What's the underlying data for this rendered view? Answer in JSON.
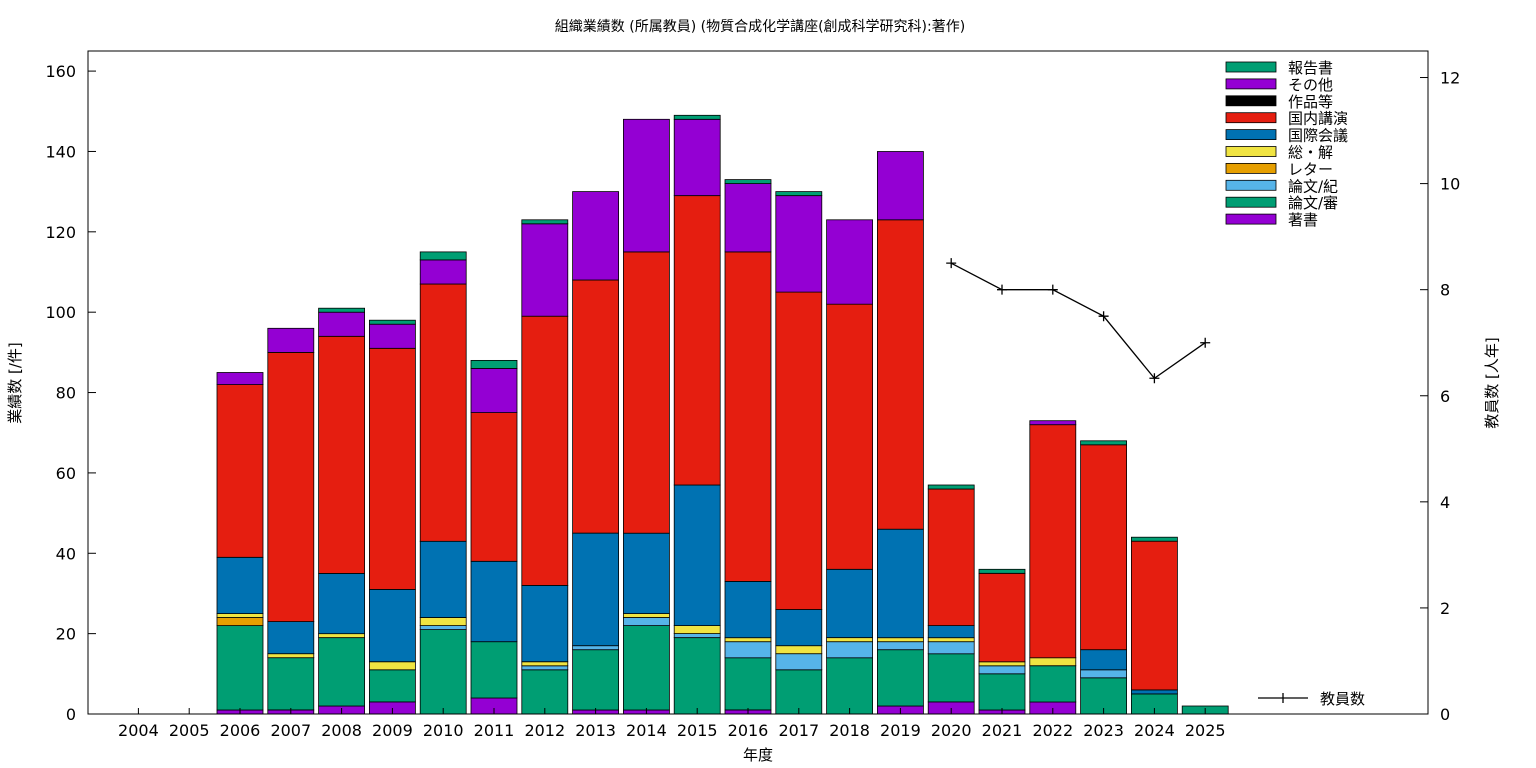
{
  "chart_data": {
    "type": "bar",
    "stacked": true,
    "title": "組織業績数 (所属教員) (物質合成化学講座(創成科学研究科):著作)",
    "xlabel": "年度",
    "ylabel": "業績数 [/件]",
    "y2label": "教員数 [人年]",
    "ylim": [
      0,
      165
    ],
    "y2lim": [
      0,
      12.5
    ],
    "yticks": [
      0,
      20,
      40,
      60,
      80,
      100,
      120,
      140,
      160
    ],
    "y2ticks": [
      0,
      2,
      4,
      6,
      8,
      10,
      12
    ],
    "categories": [
      "2004",
      "2005",
      "2006",
      "2007",
      "2008",
      "2009",
      "2010",
      "2011",
      "2012",
      "2013",
      "2014",
      "2015",
      "2016",
      "2017",
      "2018",
      "2019",
      "2020",
      "2021",
      "2022",
      "2023",
      "2024",
      "2025"
    ],
    "series": [
      {
        "name": "著書",
        "color": "#9400d3",
        "values": [
          0,
          0,
          1,
          1,
          2,
          3,
          0,
          4,
          0,
          1,
          1,
          0,
          1,
          0,
          0,
          2,
          3,
          1,
          3,
          0,
          0,
          0
        ]
      },
      {
        "name": "論文/審",
        "color": "#009e73",
        "values": [
          0,
          0,
          21,
          13,
          17,
          8,
          21,
          14,
          11,
          15,
          21,
          19,
          13,
          11,
          14,
          14,
          12,
          9,
          9,
          9,
          5,
          2
        ]
      },
      {
        "name": "論文/紀",
        "color": "#56b4e9",
        "values": [
          0,
          0,
          0,
          0,
          0,
          0,
          1,
          0,
          1,
          1,
          2,
          1,
          4,
          4,
          4,
          2,
          3,
          2,
          0,
          2,
          0,
          0
        ]
      },
      {
        "name": "レター",
        "color": "#e69f00",
        "values": [
          0,
          0,
          2,
          0,
          0,
          0,
          0,
          0,
          0,
          0,
          0,
          0,
          0,
          0,
          0,
          0,
          0,
          0,
          0,
          0,
          0,
          0
        ]
      },
      {
        "name": "総・解",
        "color": "#f0e442",
        "values": [
          0,
          0,
          1,
          1,
          1,
          2,
          2,
          0,
          1,
          0,
          1,
          2,
          1,
          2,
          1,
          1,
          1,
          1,
          2,
          0,
          0,
          0
        ]
      },
      {
        "name": "国際会議",
        "color": "#0072b2",
        "values": [
          0,
          0,
          14,
          8,
          15,
          18,
          19,
          20,
          19,
          28,
          20,
          35,
          14,
          9,
          17,
          27,
          3,
          0,
          0,
          5,
          1,
          0
        ]
      },
      {
        "name": "国内講演",
        "color": "#e51e10",
        "values": [
          0,
          0,
          43,
          67,
          59,
          60,
          64,
          37,
          67,
          63,
          70,
          72,
          82,
          79,
          66,
          77,
          34,
          22,
          58,
          51,
          37,
          0
        ]
      },
      {
        "name": "作品等",
        "color": "#000000",
        "values": [
          0,
          0,
          0,
          0,
          0,
          0,
          0,
          0,
          0,
          0,
          0,
          0,
          0,
          0,
          0,
          0,
          0,
          0,
          0,
          0,
          0,
          0
        ]
      },
      {
        "name": "その他",
        "color": "#9400d3",
        "values": [
          0,
          0,
          3,
          6,
          6,
          6,
          6,
          11,
          23,
          22,
          33,
          19,
          17,
          24,
          21,
          17,
          0,
          0,
          1,
          0,
          0,
          0
        ]
      },
      {
        "name": "報告書",
        "color": "#009e73",
        "values": [
          0,
          0,
          0,
          0,
          1,
          1,
          2,
          2,
          1,
          0,
          0,
          1,
          1,
          1,
          0,
          0,
          1,
          1,
          0,
          1,
          1,
          0
        ]
      }
    ],
    "line": {
      "name": "教員数",
      "axis": "y2",
      "color": "#000000",
      "x": [
        "2020",
        "2021",
        "2022",
        "2023",
        "2024",
        "2025"
      ],
      "values": [
        8.5,
        8.0,
        8.0,
        7.5,
        6.33,
        7.0
      ]
    },
    "legend_order": [
      "報告書",
      "その他",
      "作品等",
      "国内講演",
      "国際会議",
      "総・解",
      "レター",
      "論文/紀",
      "論文/審",
      "著書"
    ],
    "legend_position": "top-right",
    "grid": false
  }
}
